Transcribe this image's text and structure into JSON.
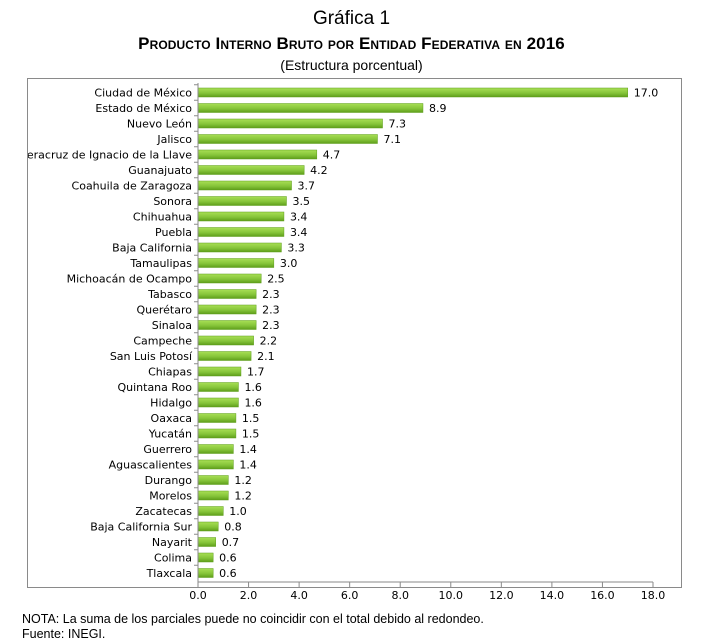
{
  "header": {
    "label": "Gráfica 1",
    "title": "Producto Interno Bruto por Entidad Federativa en 2016",
    "subtitle": "(Estructura porcentual)"
  },
  "footer": {
    "note": "NOTA: La suma de los parciales puede no coincidir con el total debido al redondeo.",
    "source": "Fuente: INEGI."
  },
  "colors": {
    "bar_light": "#a8df55",
    "bar_dark": "#5e9e1a",
    "axis": "#8a8a8a"
  },
  "chart_data": {
    "type": "bar",
    "orientation": "horizontal",
    "title": "Producto Interno Bruto por Entidad Federativa en 2016",
    "subtitle": "(Estructura porcentual)",
    "xlabel": "",
    "ylabel": "",
    "xlim": [
      0,
      18
    ],
    "x_ticks": [
      "0.0",
      "2.0",
      "4.0",
      "6.0",
      "8.0",
      "10.0",
      "12.0",
      "14.0",
      "16.0",
      "18.0"
    ],
    "grid": false,
    "legend": "none",
    "categories": [
      "Ciudad de México",
      "Estado de México",
      "Nuevo León",
      "Jalisco",
      "Veracruz de Ignacio de la Llave",
      "Guanajuato",
      "Coahuila de Zaragoza",
      "Sonora",
      "Chihuahua",
      "Puebla",
      "Baja California",
      "Tamaulipas",
      "Michoacán de Ocampo",
      "Tabasco",
      "Querétaro",
      "Sinaloa",
      "Campeche",
      "San Luis Potosí",
      "Chiapas",
      "Quintana Roo",
      "Hidalgo",
      "Oaxaca",
      "Yucatán",
      "Guerrero",
      "Aguascalientes",
      "Durango",
      "Morelos",
      "Zacatecas",
      "Baja California Sur",
      "Nayarit",
      "Colima",
      "Tlaxcala"
    ],
    "values": [
      17.0,
      8.9,
      7.3,
      7.1,
      4.7,
      4.2,
      3.7,
      3.5,
      3.4,
      3.4,
      3.3,
      3.0,
      2.5,
      2.3,
      2.3,
      2.3,
      2.2,
      2.1,
      1.7,
      1.6,
      1.6,
      1.5,
      1.5,
      1.4,
      1.4,
      1.2,
      1.2,
      1.0,
      0.8,
      0.7,
      0.6,
      0.6
    ],
    "value_labels": [
      "17.0",
      "8.9",
      "7.3",
      "7.1",
      "4.7",
      "4.2",
      "3.7",
      "3.5",
      "3.4",
      "3.4",
      "3.3",
      "3.0",
      "2.5",
      "2.3",
      "2.3",
      "2.3",
      "2.2",
      "2.1",
      "1.7",
      "1.6",
      "1.6",
      "1.5",
      "1.5",
      "1.4",
      "1.4",
      "1.2",
      "1.2",
      "1.0",
      "0.8",
      "0.7",
      "0.6",
      "0.6"
    ]
  }
}
